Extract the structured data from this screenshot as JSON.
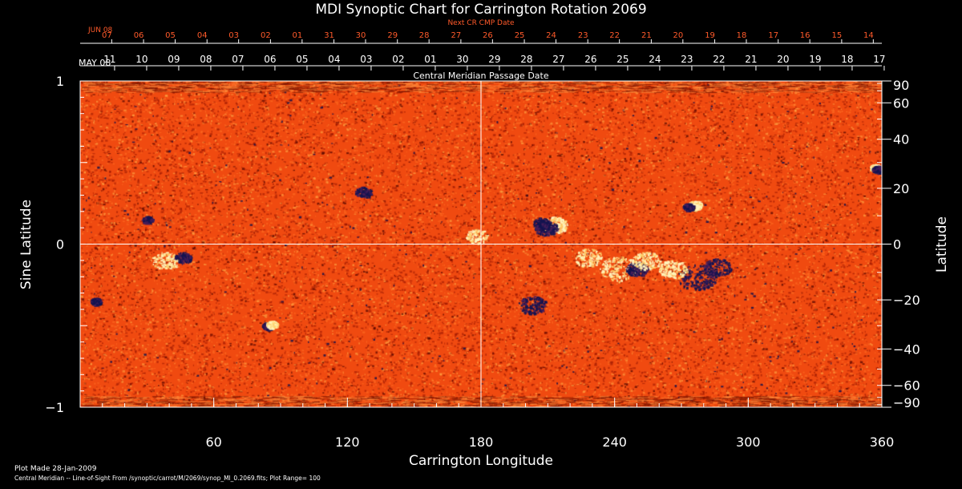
{
  "page": {
    "title": "MDI Synoptic Chart for Carrington Rotation 2069",
    "next_cr_label": "Next CR CMP Date",
    "cmp_label": "Central Meridian Passage Date",
    "plot_made": "Plot Made 28-Jan-2009",
    "footer_note": "Central Meridian -- Line-of-Sight From /synoptic/carrot/M/2069/synop_Ml_0.2069.fits; Plot Range= 100"
  },
  "colors": {
    "background": "#000000",
    "map_base": "#f04a10",
    "positive_polarity": "#fff3b0",
    "negative_polarity": "#1a1650",
    "next_cr_text": "#ff5a2a",
    "axis": "#ffffff"
  },
  "chart_data": {
    "type": "heatmap",
    "title": "MDI Synoptic Chart for Carrington Rotation 2069",
    "xlabel": "Carrington Longitude",
    "ylabel_left": "Sine Latitude",
    "ylabel_right": "Latitude",
    "xlim": [
      0,
      360
    ],
    "ylim": [
      -1,
      1
    ],
    "x_ticks": [
      60,
      120,
      180,
      240,
      300,
      360
    ],
    "y_ticks_left": [
      1,
      0,
      -1
    ],
    "y_ticks_right": [
      90,
      60,
      40,
      20,
      0,
      -20,
      -40,
      -60,
      -90
    ],
    "reference_lines": {
      "x": 180,
      "y": 0
    },
    "plot_range": 100,
    "top_axis_start_label": "MAY 08",
    "top_axis_dates": [
      "11",
      "10",
      "09",
      "08",
      "07",
      "06",
      "05",
      "04",
      "03",
      "02",
      "01",
      "30",
      "29",
      "28",
      "27",
      "26",
      "25",
      "24",
      "23",
      "22",
      "21",
      "20",
      "19",
      "18",
      "17"
    ],
    "top_axis_date_longitudes": [
      13.3,
      27.7,
      42.1,
      56.5,
      70.9,
      85.3,
      99.7,
      114.1,
      128.5,
      142.9,
      157.3,
      171.7,
      186.1,
      200.5,
      214.9,
      229.3,
      243.7,
      258.1,
      272.5,
      286.9,
      301.3,
      315.7,
      330.1,
      344.5,
      358.9
    ],
    "next_cr_start_label": "JUN 08",
    "next_cr_dates": [
      "07",
      "06",
      "05",
      "04",
      "03",
      "02",
      "01",
      "31",
      "30",
      "29",
      "28",
      "27",
      "26",
      "25",
      "24",
      "23",
      "22",
      "21",
      "20",
      "19",
      "18",
      "17",
      "16",
      "15",
      "14"
    ],
    "next_cr_date_longitudes": [
      12.0,
      26.3,
      40.5,
      54.8,
      69.0,
      83.3,
      97.5,
      111.8,
      126.0,
      140.3,
      154.5,
      168.8,
      183.0,
      197.3,
      211.5,
      225.8,
      240.0,
      254.3,
      268.5,
      282.8,
      297.0,
      311.3,
      325.5,
      339.8,
      354.0
    ],
    "active_regions": [
      {
        "lon": 213,
        "sinlat": 0.12,
        "polarity": "positive",
        "strength": 0.9,
        "spread": 0.045
      },
      {
        "lon": 209,
        "sinlat": 0.1,
        "polarity": "negative",
        "strength": 1.0,
        "spread": 0.04
      },
      {
        "lon": 207,
        "sinlat": 0.13,
        "polarity": "negative",
        "strength": 0.8,
        "spread": 0.03
      },
      {
        "lon": 276,
        "sinlat": 0.24,
        "polarity": "positive",
        "strength": 0.9,
        "spread": 0.025
      },
      {
        "lon": 273,
        "sinlat": 0.23,
        "polarity": "negative",
        "strength": 1.0,
        "spread": 0.02
      },
      {
        "lon": 357,
        "sinlat": 0.47,
        "polarity": "positive",
        "strength": 0.9,
        "spread": 0.02
      },
      {
        "lon": 358,
        "sinlat": 0.46,
        "polarity": "negative",
        "strength": 1.0,
        "spread": 0.02
      },
      {
        "lon": 242,
        "sinlat": -0.15,
        "polarity": "positive",
        "strength": 0.8,
        "spread": 0.07
      },
      {
        "lon": 250,
        "sinlat": -0.15,
        "polarity": "negative",
        "strength": 0.9,
        "spread": 0.04
      },
      {
        "lon": 254,
        "sinlat": -0.1,
        "polarity": "positive",
        "strength": 0.6,
        "spread": 0.05
      },
      {
        "lon": 277,
        "sinlat": -0.2,
        "polarity": "negative",
        "strength": 1.0,
        "spread": 0.07
      },
      {
        "lon": 286,
        "sinlat": -0.14,
        "polarity": "negative",
        "strength": 0.7,
        "spread": 0.05
      },
      {
        "lon": 266,
        "sinlat": -0.15,
        "polarity": "positive",
        "strength": 0.7,
        "spread": 0.05
      },
      {
        "lon": 228,
        "sinlat": -0.08,
        "polarity": "positive",
        "strength": 0.5,
        "spread": 0.05
      },
      {
        "lon": 203,
        "sinlat": -0.37,
        "polarity": "negative",
        "strength": 0.7,
        "spread": 0.05
      },
      {
        "lon": 84,
        "sinlat": -0.5,
        "polarity": "negative",
        "strength": 0.9,
        "spread": 0.02
      },
      {
        "lon": 86,
        "sinlat": -0.49,
        "polarity": "positive",
        "strength": 0.8,
        "spread": 0.02
      },
      {
        "lon": 38,
        "sinlat": -0.1,
        "polarity": "positive",
        "strength": 0.5,
        "spread": 0.05
      },
      {
        "lon": 46,
        "sinlat": -0.08,
        "polarity": "negative",
        "strength": 0.6,
        "spread": 0.03
      },
      {
        "lon": 30,
        "sinlat": 0.15,
        "polarity": "negative",
        "strength": 0.5,
        "spread": 0.02
      },
      {
        "lon": 127,
        "sinlat": 0.32,
        "polarity": "negative",
        "strength": 0.5,
        "spread": 0.03
      },
      {
        "lon": 178,
        "sinlat": 0.05,
        "polarity": "positive",
        "strength": 0.4,
        "spread": 0.04
      },
      {
        "lon": 7,
        "sinlat": -0.35,
        "polarity": "negative",
        "strength": 0.5,
        "spread": 0.02
      }
    ]
  }
}
